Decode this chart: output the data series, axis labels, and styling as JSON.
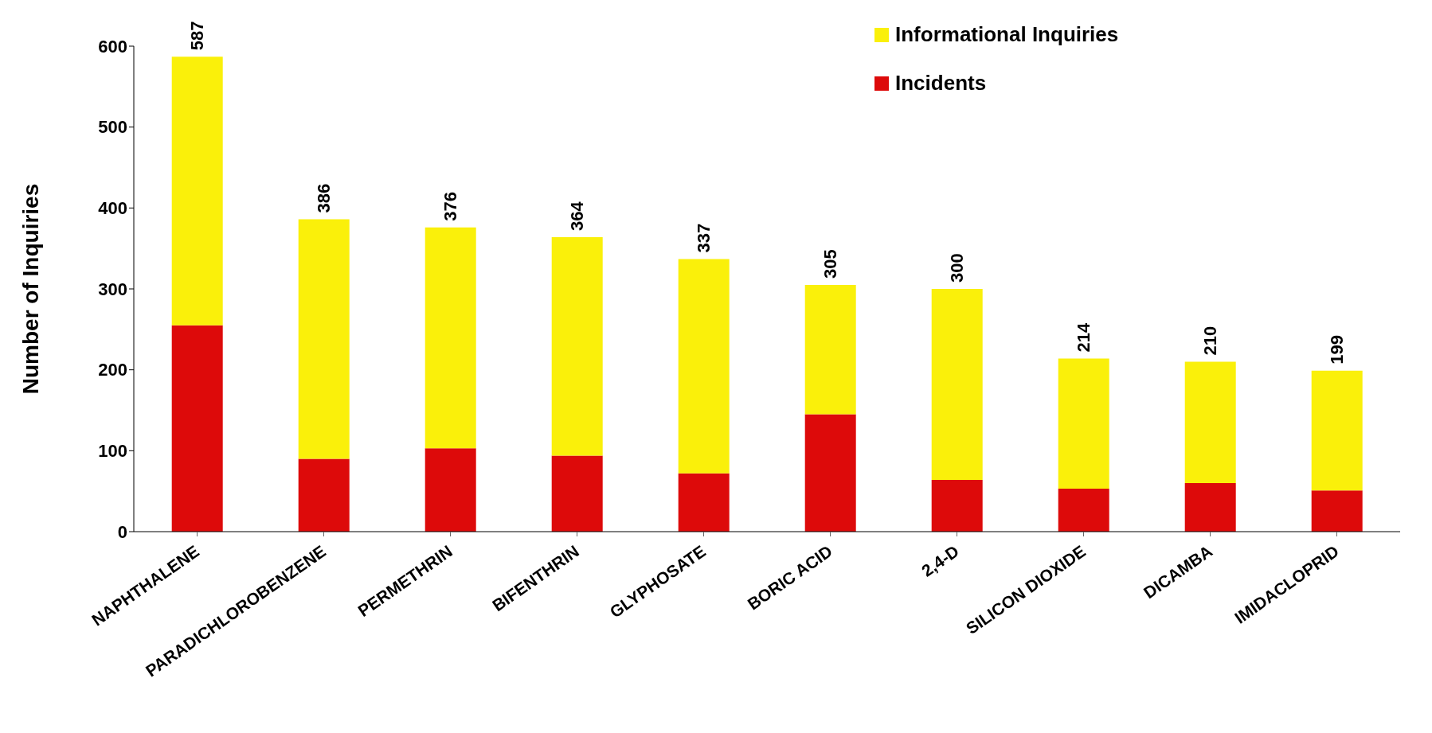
{
  "chart_data": {
    "type": "bar",
    "stacked": true,
    "ylabel": "Number of Inquiries",
    "categories": [
      "NAPHTHALENE",
      "PARADICHLOROBENZENE",
      "PERMETHRIN",
      "BIFENTHRIN",
      "GLYPHOSATE",
      "BORIC ACID",
      "2,4-D",
      "SILICON DIOXIDE",
      "DICAMBA",
      "IMIDACLOPRID"
    ],
    "series": [
      {
        "name": "Incidents",
        "color": "#dd0a0a",
        "values": [
          255,
          90,
          103,
          94,
          72,
          145,
          64,
          53,
          60,
          51
        ]
      },
      {
        "name": "Informational Inquiries",
        "color": "#faf00a",
        "values": [
          332,
          296,
          273,
          270,
          265,
          160,
          236,
          161,
          150,
          148
        ]
      }
    ],
    "totals": [
      "587",
      "386",
      "376",
      "364",
      "337",
      "305",
      "300",
      "214",
      "210",
      "199"
    ],
    "ylim": [
      0,
      600
    ],
    "yticks": [
      0,
      100,
      200,
      300,
      400,
      500,
      600
    ],
    "grid": false,
    "legend": "top right"
  }
}
